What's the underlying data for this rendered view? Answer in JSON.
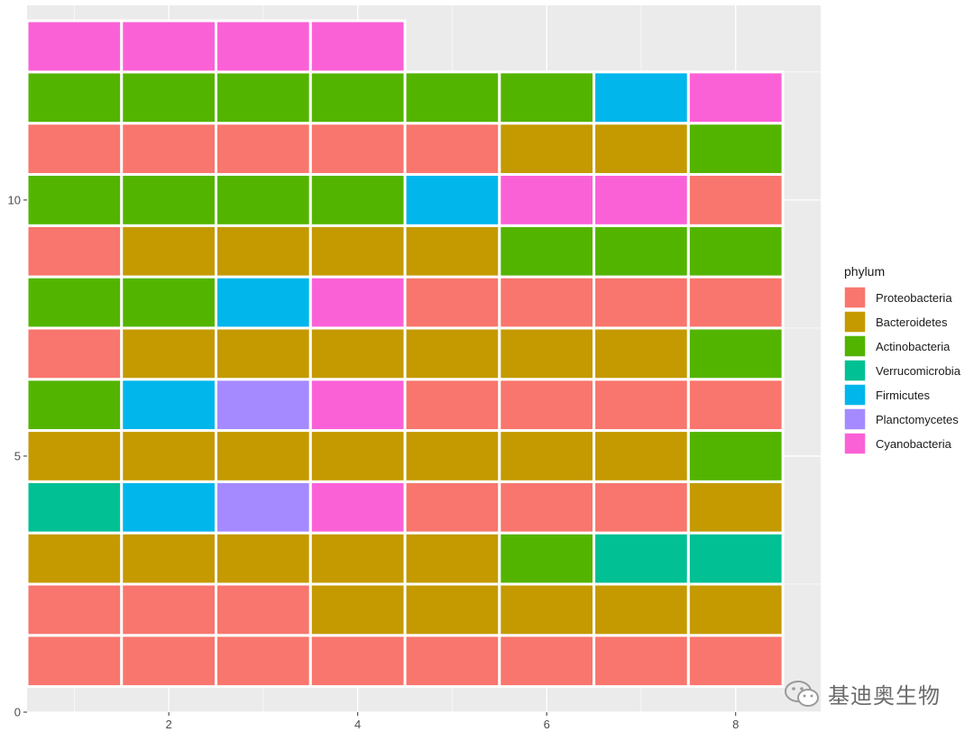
{
  "chart_data": {
    "type": "heatmap",
    "title": "",
    "xlabel": "",
    "ylabel": "",
    "xlim": [
      0.5,
      8.9
    ],
    "ylim": [
      0,
      13.8
    ],
    "x_ticks": [
      2,
      4,
      6,
      8
    ],
    "y_ticks": [
      0,
      5,
      10
    ],
    "grid": true,
    "legend": {
      "title": "phylum",
      "position": "right",
      "entries": [
        {
          "name": "Proteobacteria",
          "color": "#F8766D"
        },
        {
          "name": "Bacteroidetes",
          "color": "#C49A00"
        },
        {
          "name": "Actinobacteria",
          "color": "#53B400"
        },
        {
          "name": "Verrucomicrobia",
          "color": "#00C094"
        },
        {
          "name": "Firmicutes",
          "color": "#00B6EB"
        },
        {
          "name": "Planctomycetes",
          "color": "#A58AFF"
        },
        {
          "name": "Cyanobacteria",
          "color": "#FB61D7"
        }
      ]
    },
    "rows": [
      [
        "Proteobacteria",
        "Proteobacteria",
        "Proteobacteria",
        "Proteobacteria",
        "Proteobacteria",
        "Proteobacteria",
        "Proteobacteria",
        "Proteobacteria"
      ],
      [
        "Proteobacteria",
        "Proteobacteria",
        "Proteobacteria",
        "Bacteroidetes",
        "Bacteroidetes",
        "Bacteroidetes",
        "Bacteroidetes",
        "Bacteroidetes"
      ],
      [
        "Bacteroidetes",
        "Bacteroidetes",
        "Bacteroidetes",
        "Bacteroidetes",
        "Bacteroidetes",
        "Actinobacteria",
        "Verrucomicrobia",
        "Verrucomicrobia"
      ],
      [
        "Verrucomicrobia",
        "Firmicutes",
        "Planctomycetes",
        "Cyanobacteria",
        "Proteobacteria",
        "Proteobacteria",
        "Proteobacteria",
        "Bacteroidetes"
      ],
      [
        "Bacteroidetes",
        "Bacteroidetes",
        "Bacteroidetes",
        "Bacteroidetes",
        "Bacteroidetes",
        "Bacteroidetes",
        "Bacteroidetes",
        "Actinobacteria"
      ],
      [
        "Actinobacteria",
        "Firmicutes",
        "Planctomycetes",
        "Cyanobacteria",
        "Proteobacteria",
        "Proteobacteria",
        "Proteobacteria",
        "Proteobacteria"
      ],
      [
        "Proteobacteria",
        "Bacteroidetes",
        "Bacteroidetes",
        "Bacteroidetes",
        "Bacteroidetes",
        "Bacteroidetes",
        "Bacteroidetes",
        "Actinobacteria"
      ],
      [
        "Actinobacteria",
        "Actinobacteria",
        "Firmicutes",
        "Cyanobacteria",
        "Proteobacteria",
        "Proteobacteria",
        "Proteobacteria",
        "Proteobacteria"
      ],
      [
        "Proteobacteria",
        "Bacteroidetes",
        "Bacteroidetes",
        "Bacteroidetes",
        "Bacteroidetes",
        "Actinobacteria",
        "Actinobacteria",
        "Actinobacteria"
      ],
      [
        "Actinobacteria",
        "Actinobacteria",
        "Actinobacteria",
        "Actinobacteria",
        "Firmicutes",
        "Cyanobacteria",
        "Cyanobacteria",
        "Proteobacteria"
      ],
      [
        "Proteobacteria",
        "Proteobacteria",
        "Proteobacteria",
        "Proteobacteria",
        "Proteobacteria",
        "Bacteroidetes",
        "Bacteroidetes",
        "Actinobacteria"
      ],
      [
        "Actinobacteria",
        "Actinobacteria",
        "Actinobacteria",
        "Actinobacteria",
        "Actinobacteria",
        "Actinobacteria",
        "Firmicutes",
        "Cyanobacteria"
      ],
      [
        "Cyanobacteria",
        "Cyanobacteria",
        "Cyanobacteria",
        "Cyanobacteria"
      ]
    ]
  },
  "watermark": {
    "text": "基迪奥生物",
    "icon": "wechat-icon"
  }
}
